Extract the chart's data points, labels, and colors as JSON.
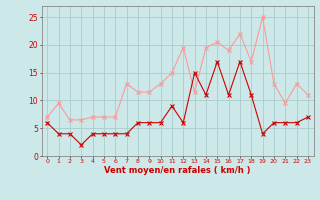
{
  "x": [
    0,
    1,
    2,
    3,
    4,
    5,
    6,
    7,
    8,
    9,
    10,
    11,
    12,
    13,
    14,
    15,
    16,
    17,
    18,
    19,
    20,
    21,
    22,
    23
  ],
  "mean_wind": [
    6,
    4,
    4,
    2,
    4,
    4,
    4,
    4,
    6,
    6,
    6,
    9,
    6,
    15,
    11,
    17,
    11,
    17,
    11,
    4,
    6,
    6,
    6,
    7
  ],
  "gust_wind": [
    7,
    9.5,
    6.5,
    6.5,
    7,
    7,
    7,
    13,
    11.5,
    11.5,
    13,
    15,
    19.5,
    11.5,
    19.5,
    20.5,
    19,
    22,
    17,
    25,
    13,
    9.5,
    13,
    11
  ],
  "mean_color": "#cc0000",
  "gust_color": "#ff9999",
  "bg_color": "#cce8e8",
  "grid_color": "#aacccc",
  "xlabel": "Vent moyen/en rafales ( km/h )",
  "xlabel_color": "#cc0000",
  "tick_color": "#cc0000",
  "spine_color": "#888888",
  "ylim": [
    0,
    27
  ],
  "yticks": [
    0,
    5,
    10,
    15,
    20,
    25
  ],
  "xlim": [
    -0.5,
    23.5
  ],
  "figwidth": 3.2,
  "figheight": 2.0,
  "dpi": 100
}
